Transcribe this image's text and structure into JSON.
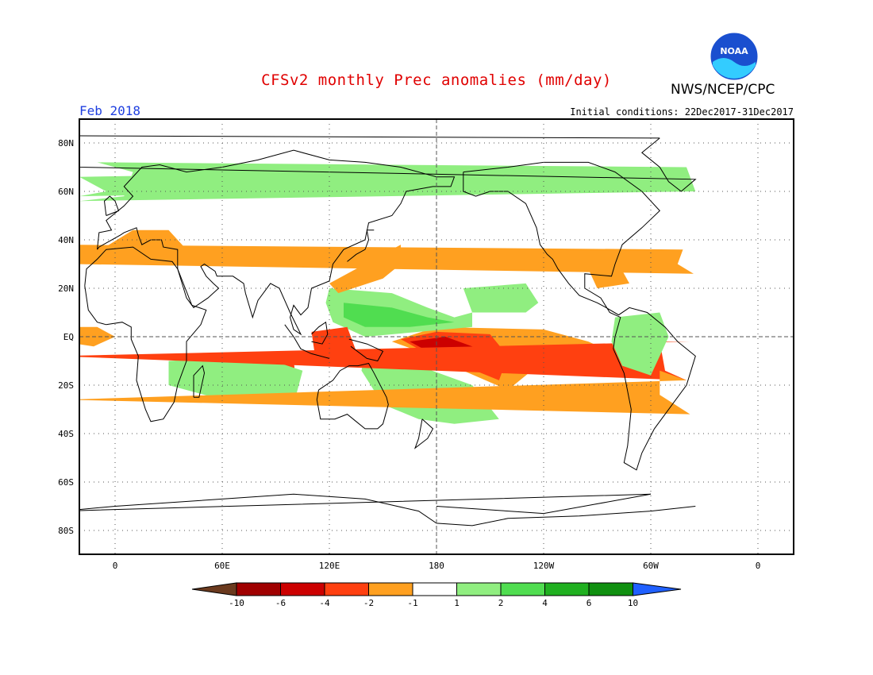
{
  "title": "CFSv2 monthly Prec anomalies (mm/day)",
  "agency": "NWS/NCEP/CPC",
  "logo_text": "NOAA",
  "period": "Feb 2018",
  "initial_conditions": "Initial conditions: 22Dec2017-31Dec2017",
  "map": {
    "lat_labels": [
      "80N",
      "60N",
      "40N",
      "20N",
      "EQ",
      "20S",
      "40S",
      "60S",
      "80S"
    ],
    "lon_labels": [
      "0",
      "60E",
      "120E",
      "180",
      "120W",
      "60W",
      "0"
    ],
    "grid": "dotted",
    "dashed_reference_lines": [
      "EQ",
      "180"
    ]
  },
  "legend": {
    "tick_labels": [
      "-10",
      "-6",
      "-4",
      "-2",
      "-1",
      "1",
      "2",
      "4",
      "6",
      "10"
    ],
    "colors": [
      "#6b3a1e",
      "#a00000",
      "#cc0000",
      "#ff4010",
      "#ffa020",
      "#ffffff",
      "#90ee80",
      "#50dd50",
      "#20b020",
      "#109010",
      "#2060ff"
    ]
  },
  "colors": {
    "title": "#e00000",
    "period": "#2040e0",
    "noaa_blue": "#1a4fcf",
    "noaa_light": "#33ccff"
  },
  "anomaly_regions": [
    {
      "name": "Central Pacific dry",
      "color": "#ffa020",
      "pts": [
        [
          155,
          -2
        ],
        [
          180,
          4
        ],
        [
          240,
          3
        ],
        [
          265,
          -2
        ],
        [
          277,
          -6
        ],
        [
          265,
          -10
        ],
        [
          240,
          -10
        ],
        [
          220,
          -22
        ],
        [
          195,
          -14
        ],
        [
          170,
          -6
        ]
      ]
    },
    {
      "name": "Central Pacific dry core",
      "color": "#ff4010",
      "pts": [
        [
          160,
          -1
        ],
        [
          180,
          2
        ],
        [
          210,
          1
        ],
        [
          220,
          -8
        ],
        [
          215,
          -18
        ],
        [
          195,
          -12
        ],
        [
          172,
          -6
        ]
      ]
    },
    {
      "name": "Central Pacific dry max",
      "color": "#cc0000",
      "pts": [
        [
          165,
          -2
        ],
        [
          185,
          0
        ],
        [
          200,
          -4
        ],
        [
          210,
          -10
        ],
        [
          192,
          -10
        ],
        [
          175,
          -6
        ]
      ]
    },
    {
      "name": "Tropical West Pacific wet",
      "color": "#90ee80",
      "pts": [
        [
          120,
          20
        ],
        [
          155,
          18
        ],
        [
          175,
          12
        ],
        [
          190,
          8
        ],
        [
          200,
          10
        ],
        [
          200,
          4
        ],
        [
          170,
          2
        ],
        [
          140,
          0
        ],
        [
          122,
          6
        ],
        [
          118,
          14
        ]
      ]
    },
    {
      "name": "West Pacific wet core",
      "color": "#50dd50",
      "pts": [
        [
          128,
          14
        ],
        [
          155,
          12
        ],
        [
          175,
          8
        ],
        [
          190,
          6
        ],
        [
          165,
          4
        ],
        [
          140,
          4
        ],
        [
          128,
          8
        ]
      ]
    },
    {
      "name": "SPCZ wet",
      "color": "#90ee80",
      "pts": [
        [
          140,
          -6
        ],
        [
          170,
          -12
        ],
        [
          200,
          -20
        ],
        [
          215,
          -34
        ],
        [
          190,
          -36
        ],
        [
          170,
          -34
        ],
        [
          150,
          -28
        ],
        [
          138,
          -14
        ]
      ]
    },
    {
      "name": "North Pacific ITCZ wet",
      "color": "#90ee80",
      "pts": [
        [
          195,
          20
        ],
        [
          230,
          22
        ],
        [
          237,
          14
        ],
        [
          230,
          10
        ],
        [
          200,
          10
        ]
      ]
    },
    {
      "name": "Maritime Continent dry",
      "color": "#ff4010",
      "pts": [
        [
          110,
          2
        ],
        [
          130,
          4
        ],
        [
          135,
          -6
        ],
        [
          125,
          -10
        ],
        [
          112,
          -8
        ]
      ]
    },
    {
      "name": "Indian Ocean dry",
      "color": "#ff4010",
      "pts": [
        [
          85,
          -10
        ],
        [
          100,
          -10
        ],
        [
          102,
          -22
        ],
        [
          90,
          -24
        ],
        [
          84,
          -16
        ]
      ]
    },
    {
      "name": "South Indian wet",
      "color": "#90ee80",
      "pts": [
        [
          30,
          -10
        ],
        [
          80,
          -8
        ],
        [
          105,
          -14
        ],
        [
          100,
          -28
        ],
        [
          60,
          -26
        ],
        [
          30,
          -20
        ]
      ]
    },
    {
      "name": "Kuroshio dry",
      "color": "#ffa020",
      "pts": [
        [
          120,
          22
        ],
        [
          140,
          30
        ],
        [
          160,
          38
        ],
        [
          160,
          30
        ],
        [
          150,
          24
        ],
        [
          125,
          18
        ]
      ]
    },
    {
      "name": "Mediterranean dry",
      "color": "#ffa020",
      "pts": [
        [
          -10,
          35
        ],
        [
          10,
          44
        ],
        [
          30,
          44
        ],
        [
          40,
          36
        ],
        [
          20,
          32
        ],
        [
          -5,
          30
        ]
      ]
    },
    {
      "name": "Brazil dry",
      "color": "#ff4010",
      "pts": [
        [
          -55,
          -2
        ],
        [
          -38,
          -2
        ],
        [
          -32,
          -8
        ],
        [
          -40,
          -18
        ],
        [
          -52,
          -14
        ]
      ]
    },
    {
      "name": "South Atlantic dry",
      "color": "#ffa020",
      "pts": [
        [
          -55,
          -14
        ],
        [
          -40,
          -18
        ],
        [
          -28,
          -26
        ],
        [
          -38,
          -32
        ],
        [
          -55,
          -24
        ]
      ]
    },
    {
      "name": "Amazon wet",
      "color": "#90ee80",
      "pts": [
        [
          -80,
          8
        ],
        [
          -55,
          10
        ],
        [
          -50,
          0
        ],
        [
          -60,
          -16
        ],
        [
          -76,
          -12
        ],
        [
          -82,
          -2
        ]
      ]
    },
    {
      "name": "Greenland/N Atlantic wet",
      "color": "#90ee80",
      "pts": [
        [
          -40,
          70
        ],
        [
          -10,
          72
        ],
        [
          10,
          68
        ],
        [
          5,
          58
        ],
        [
          -20,
          56
        ],
        [
          -35,
          60
        ]
      ]
    },
    {
      "name": "Scandinavia wet",
      "color": "#90ee80",
      "pts": [
        [
          -45,
          70
        ],
        [
          -20,
          66
        ],
        [
          -5,
          60
        ],
        [
          -20,
          58
        ],
        [
          -40,
          62
        ]
      ]
    },
    {
      "name": "Gulf of Mexico dry",
      "color": "#ffa020",
      "pts": [
        [
          -95,
          28
        ],
        [
          -78,
          30
        ],
        [
          -72,
          22
        ],
        [
          -90,
          20
        ]
      ]
    },
    {
      "name": "Equatorial Atlantic dry",
      "color": "#ffa020",
      "pts": [
        [
          -30,
          4
        ],
        [
          -10,
          4
        ],
        [
          0,
          0
        ],
        [
          -12,
          -4
        ],
        [
          -30,
          -2
        ]
      ]
    },
    {
      "name": "Central Atlantic dry",
      "color": "#ffa020",
      "pts": [
        [
          -42,
          36
        ],
        [
          -30,
          38
        ],
        [
          -24,
          30
        ],
        [
          -36,
          26
        ],
        [
          -45,
          30
        ]
      ]
    }
  ]
}
